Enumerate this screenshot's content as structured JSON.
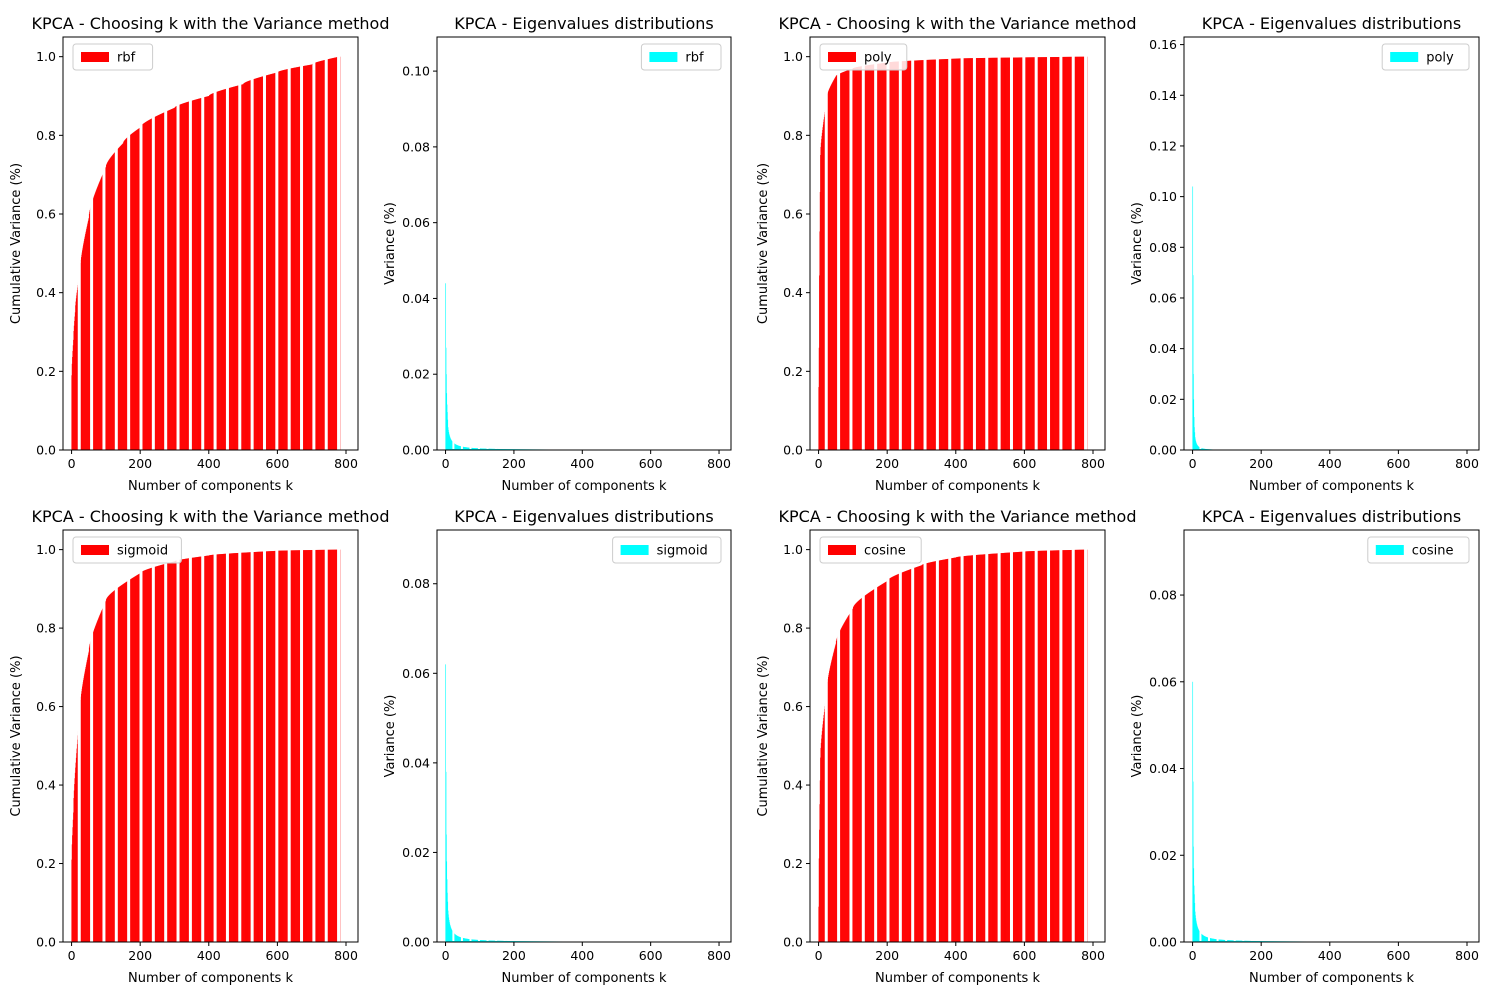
{
  "chart_data": [
    {
      "type": "bar",
      "kernel": "rbf",
      "title": "KPCA - Choosing k with the Variance method",
      "xlabel": "Number of components k",
      "ylabel": "Cumulative Variance (%)",
      "legend": "rbf",
      "legend_position": "upper-left",
      "color": "#ff0000",
      "xlim": [
        -25,
        835
      ],
      "ylim": [
        0,
        1.05
      ],
      "xticks": [
        0,
        200,
        400,
        600,
        800
      ],
      "yticks": [
        0.0,
        0.2,
        0.4,
        0.6,
        0.8,
        1.0
      ],
      "curve": {
        "initial": 0.19,
        "shape": 0.18,
        "points": [
          [
            0,
            0.19
          ],
          [
            5,
            0.28
          ],
          [
            10,
            0.35
          ],
          [
            25,
            0.46
          ],
          [
            50,
            0.59
          ],
          [
            100,
            0.72
          ],
          [
            150,
            0.78
          ],
          [
            200,
            0.82
          ],
          [
            300,
            0.87
          ],
          [
            400,
            0.9
          ],
          [
            500,
            0.93
          ],
          [
            600,
            0.96
          ],
          [
            700,
            0.98
          ],
          [
            780,
            1.0
          ]
        ]
      }
    },
    {
      "type": "bar",
      "kernel": "rbf",
      "title": "KPCA - Eigenvalues distributions",
      "xlabel": "Number of components k",
      "ylabel": "Variance (%)",
      "legend": "rbf",
      "legend_position": "upper-right",
      "color": "#00ffff",
      "xlim": [
        -25,
        835
      ],
      "ylim": [
        0,
        0.109
      ],
      "xticks": [
        0,
        200,
        400,
        600,
        800
      ],
      "yticks": [
        0.0,
        0.02,
        0.04,
        0.06,
        0.08,
        0.1
      ],
      "decay": {
        "peaks": [
          0.044,
          0.027,
          0.02,
          0.015,
          0.012,
          0.01,
          0.008,
          0.006
        ],
        "scale": 0.003,
        "power": 1.05
      },
      "values_sample": [
        [
          0,
          0.044
        ],
        [
          5,
          0.027
        ],
        [
          25,
          0.008
        ],
        [
          100,
          0.0015
        ],
        [
          300,
          0.0004
        ],
        [
          780,
          5e-05
        ]
      ]
    },
    {
      "type": "bar",
      "kernel": "poly",
      "title": "KPCA - Choosing k with the Variance method",
      "xlabel": "Number of components k",
      "ylabel": "Cumulative Variance (%)",
      "legend": "poly",
      "legend_position": "upper-left",
      "color": "#ff0000",
      "xlim": [
        -25,
        835
      ],
      "ylim": [
        0,
        1.05
      ],
      "xticks": [
        0,
        200,
        400,
        600,
        800
      ],
      "yticks": [
        0.0,
        0.2,
        0.4,
        0.6,
        0.8,
        1.0
      ],
      "curve": {
        "initial": 0.16,
        "shape": 0.02,
        "points": [
          [
            0,
            0.16
          ],
          [
            1,
            0.26
          ],
          [
            5,
            0.75
          ],
          [
            25,
            0.9
          ],
          [
            50,
            0.95
          ],
          [
            100,
            0.97
          ],
          [
            200,
            0.985
          ],
          [
            400,
            0.995
          ],
          [
            780,
            1.0
          ]
        ]
      }
    },
    {
      "type": "bar",
      "kernel": "poly",
      "title": "KPCA - Eigenvalues distributions",
      "xlabel": "Number of components k",
      "ylabel": "Variance (%)",
      "legend": "poly",
      "legend_position": "upper-right",
      "color": "#00ffff",
      "xlim": [
        -25,
        835
      ],
      "ylim": [
        0,
        0.163
      ],
      "xticks": [
        0,
        200,
        400,
        600,
        800
      ],
      "yticks": [
        0.0,
        0.02,
        0.04,
        0.06,
        0.08,
        0.1,
        0.12,
        0.14,
        0.16
      ],
      "decay": {
        "peaks": [
          0.104,
          0.069,
          0.03,
          0.02,
          0.013,
          0.009,
          0.007,
          0.005
        ],
        "scale": 0.0035,
        "power": 1.6
      },
      "values_sample": [
        [
          0,
          0.104
        ],
        [
          1,
          0.069
        ],
        [
          10,
          0.007
        ],
        [
          50,
          0.0008
        ],
        [
          200,
          0.0001
        ],
        [
          780,
          0.0
        ]
      ]
    },
    {
      "type": "bar",
      "kernel": "sigmoid",
      "title": "KPCA - Choosing k with the Variance method",
      "xlabel": "Number of components k",
      "ylabel": "Cumulative Variance (%)",
      "legend": "sigmoid",
      "legend_position": "upper-left",
      "color": "#ff0000",
      "xlim": [
        -25,
        835
      ],
      "ylim": [
        0,
        1.05
      ],
      "xticks": [
        0,
        200,
        400,
        600,
        800
      ],
      "yticks": [
        0.0,
        0.2,
        0.4,
        0.6,
        0.8,
        1.0
      ],
      "curve": {
        "initial": 0.21,
        "shape": 0.1,
        "points": [
          [
            0,
            0.21
          ],
          [
            5,
            0.33
          ],
          [
            25,
            0.6
          ],
          [
            50,
            0.74
          ],
          [
            100,
            0.87
          ],
          [
            200,
            0.94
          ],
          [
            300,
            0.97
          ],
          [
            400,
            0.985
          ],
          [
            600,
            0.997
          ],
          [
            780,
            1.0
          ]
        ]
      }
    },
    {
      "type": "bar",
      "kernel": "sigmoid",
      "title": "KPCA - Eigenvalues distributions",
      "xlabel": "Number of components k",
      "ylabel": "Variance (%)",
      "legend": "sigmoid",
      "legend_position": "upper-right",
      "color": "#00ffff",
      "xlim": [
        -25,
        835
      ],
      "ylim": [
        0,
        0.092
      ],
      "xticks": [
        0,
        200,
        400,
        600,
        800
      ],
      "yticks": [
        0.0,
        0.02,
        0.04,
        0.06,
        0.08
      ],
      "decay": {
        "peaks": [
          0.062,
          0.038,
          0.024,
          0.018,
          0.014,
          0.011,
          0.009,
          0.007
        ],
        "scale": 0.004,
        "power": 1.1
      },
      "values_sample": [
        [
          0,
          0.062
        ],
        [
          1,
          0.038
        ],
        [
          25,
          0.006
        ],
        [
          100,
          0.0015
        ],
        [
          300,
          0.0003
        ],
        [
          550,
          0.0001
        ]
      ]
    },
    {
      "type": "bar",
      "kernel": "cosine",
      "title": "KPCA - Choosing k with the Variance method",
      "xlabel": "Number of components k",
      "ylabel": "Cumulative Variance (%)",
      "legend": "cosine",
      "legend_position": "upper-left",
      "color": "#ff0000",
      "xlim": [
        -25,
        835
      ],
      "ylim": [
        0,
        1.05
      ],
      "xticks": [
        0,
        200,
        400,
        600,
        800
      ],
      "yticks": [
        0.0,
        0.2,
        0.4,
        0.6,
        0.8,
        1.0
      ],
      "curve": {
        "initial": 0.09,
        "shape": 0.1,
        "points": [
          [
            0,
            0.09
          ],
          [
            5,
            0.47
          ],
          [
            25,
            0.65
          ],
          [
            50,
            0.76
          ],
          [
            100,
            0.85
          ],
          [
            200,
            0.92
          ],
          [
            300,
            0.96
          ],
          [
            400,
            0.98
          ],
          [
            600,
            0.995
          ],
          [
            780,
            1.0
          ]
        ]
      }
    },
    {
      "type": "bar",
      "kernel": "cosine",
      "title": "KPCA - Eigenvalues distributions",
      "xlabel": "Number of components k",
      "ylabel": "Variance (%)",
      "legend": "cosine",
      "legend_position": "upper-right",
      "color": "#00ffff",
      "xlim": [
        -25,
        835
      ],
      "ylim": [
        0,
        0.095
      ],
      "xticks": [
        0,
        200,
        400,
        600,
        800
      ],
      "yticks": [
        0.0,
        0.02,
        0.04,
        0.06,
        0.08
      ],
      "decay": {
        "peaks": [
          0.06,
          0.037,
          0.022,
          0.017,
          0.013,
          0.011,
          0.009,
          0.007
        ],
        "scale": 0.004,
        "power": 1.1
      },
      "values_sample": [
        [
          0,
          0.06
        ],
        [
          1,
          0.037
        ],
        [
          25,
          0.006
        ],
        [
          100,
          0.0015
        ],
        [
          300,
          0.0003
        ],
        [
          600,
          0.0001
        ]
      ]
    }
  ]
}
